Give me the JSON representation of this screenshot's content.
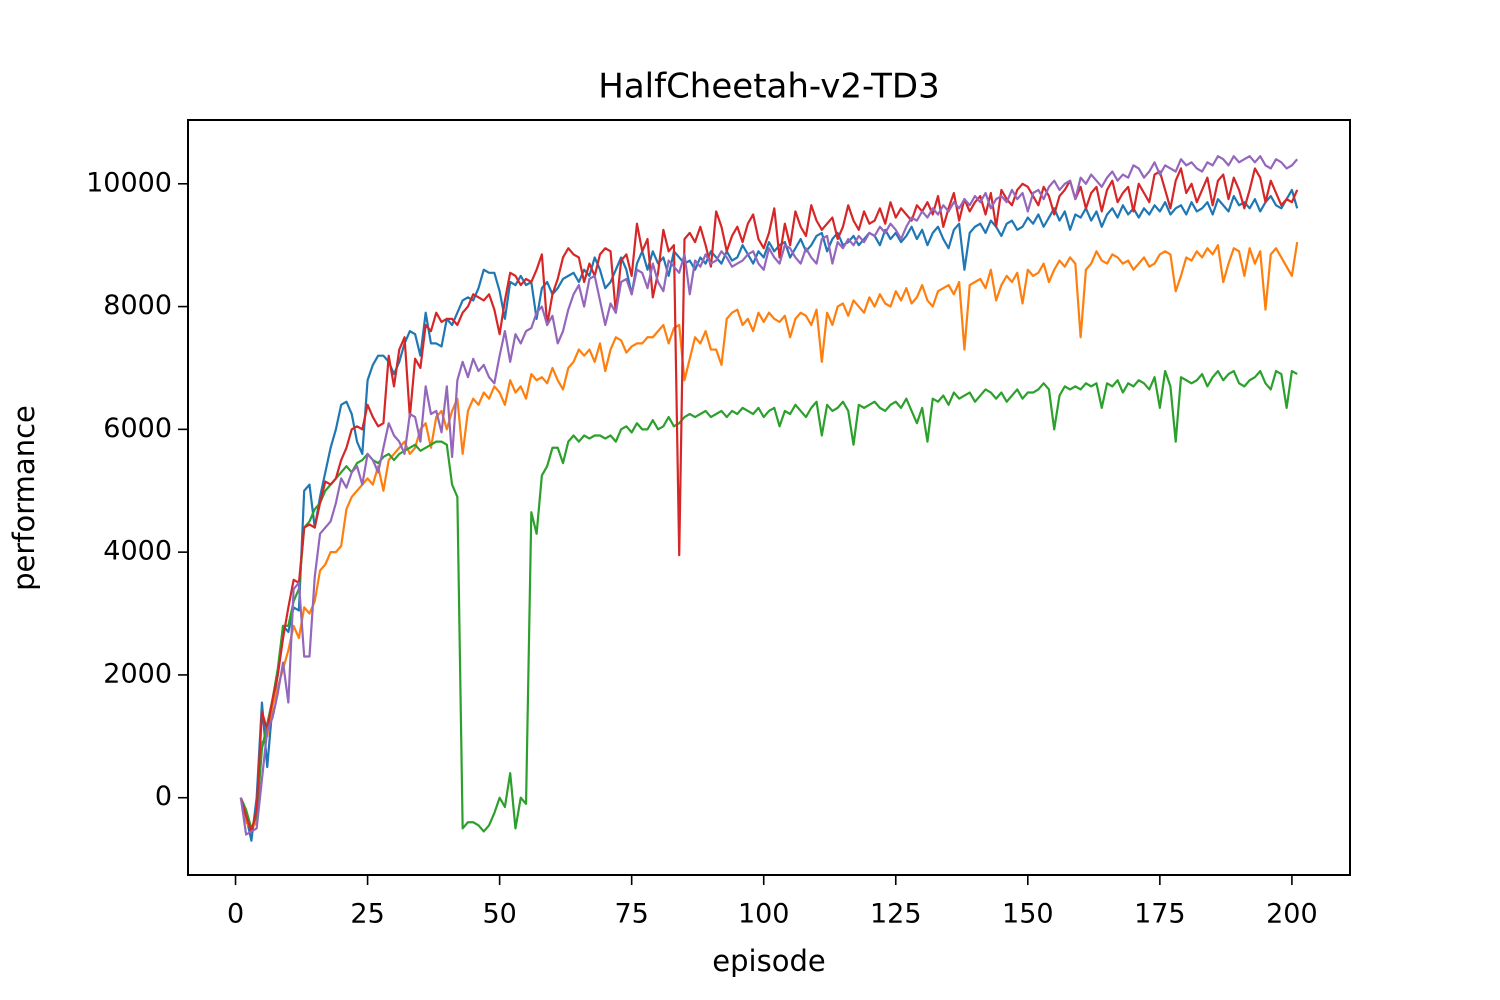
{
  "chart_data": {
    "type": "line",
    "title": "HalfCheetah-v2-TD3",
    "x_label": "episode",
    "y_label": "performance",
    "xlim": [
      -9,
      211
    ],
    "ylim": [
      -1259,
      11039
    ],
    "xticks": [
      0,
      25,
      50,
      75,
      100,
      125,
      150,
      175,
      200
    ],
    "yticks": [
      0,
      2000,
      4000,
      6000,
      8000,
      10000
    ],
    "grid": false,
    "x": [
      1,
      2,
      3,
      4,
      5,
      6,
      7,
      8,
      9,
      10,
      11,
      12,
      13,
      14,
      15,
      16,
      17,
      18,
      19,
      20,
      21,
      22,
      23,
      24,
      25,
      26,
      27,
      28,
      29,
      30,
      31,
      32,
      33,
      34,
      35,
      36,
      37,
      38,
      39,
      40,
      41,
      42,
      43,
      44,
      45,
      46,
      47,
      48,
      49,
      50,
      51,
      52,
      53,
      54,
      55,
      56,
      57,
      58,
      59,
      60,
      61,
      62,
      63,
      64,
      65,
      66,
      67,
      68,
      69,
      70,
      71,
      72,
      73,
      74,
      75,
      76,
      77,
      78,
      79,
      80,
      81,
      82,
      83,
      84,
      85,
      86,
      87,
      88,
      89,
      90,
      91,
      92,
      93,
      94,
      95,
      96,
      97,
      98,
      99,
      100,
      101,
      102,
      103,
      104,
      105,
      106,
      107,
      108,
      109,
      110,
      111,
      112,
      113,
      114,
      115,
      116,
      117,
      118,
      119,
      120,
      121,
      122,
      123,
      124,
      125,
      126,
      127,
      128,
      129,
      130,
      131,
      132,
      133,
      134,
      135,
      136,
      137,
      138,
      139,
      140,
      141,
      142,
      143,
      144,
      145,
      146,
      147,
      148,
      149,
      150,
      151,
      152,
      153,
      154,
      155,
      156,
      157,
      158,
      159,
      160,
      161,
      162,
      163,
      164,
      165,
      166,
      167,
      168,
      169,
      170,
      171,
      172,
      173,
      174,
      175,
      176,
      177,
      178,
      179,
      180,
      181,
      182,
      183,
      184,
      185,
      186,
      187,
      188,
      189,
      190,
      191,
      192,
      193,
      194,
      195,
      196,
      197,
      198,
      199,
      200,
      201
    ],
    "series": [
      {
        "color": "#1f77b4",
        "values": [
          0,
          -300,
          -700,
          0,
          1550,
          500,
          1500,
          2000,
          2800,
          2700,
          3100,
          3050,
          5000,
          5100,
          4400,
          4900,
          5300,
          5700,
          6000,
          6400,
          6450,
          6250,
          5800,
          5600,
          6800,
          7050,
          7200,
          7200,
          7100,
          6900,
          7100,
          7400,
          7600,
          7550,
          7200,
          7900,
          7400,
          7400,
          7350,
          7800,
          7700,
          7900,
          8100,
          8150,
          8100,
          8300,
          8600,
          8550,
          8550,
          8250,
          7800,
          8400,
          8350,
          8500,
          8350,
          8400,
          7800,
          8300,
          8400,
          8200,
          8300,
          8450,
          8500,
          8550,
          8400,
          8600,
          8500,
          8800,
          8600,
          8300,
          8400,
          8600,
          8800,
          8600,
          8200,
          8700,
          8900,
          8600,
          8900,
          8700,
          8800,
          8500,
          8900,
          8800,
          8700,
          8750,
          8600,
          8800,
          8700,
          8900,
          8800,
          8700,
          8900,
          8750,
          8800,
          9000,
          8850,
          8700,
          8900,
          8800,
          9050,
          8900,
          9000,
          9050,
          8800,
          8950,
          9100,
          8900,
          9000,
          9150,
          9200,
          8900,
          9100,
          9200,
          9000,
          9050,
          9150,
          9000,
          9100,
          9200,
          9150,
          9000,
          9250,
          9100,
          9200,
          9050,
          9150,
          9300,
          9100,
          9250,
          9000,
          9200,
          9300,
          9100,
          8950,
          9250,
          9350,
          8600,
          9200,
          9300,
          9350,
          9200,
          9400,
          9300,
          9150,
          9350,
          9400,
          9250,
          9300,
          9450,
          9350,
          9500,
          9300,
          9450,
          9600,
          9400,
          9550,
          9250,
          9500,
          9450,
          9600,
          9400,
          9550,
          9300,
          9500,
          9600,
          9450,
          9650,
          9500,
          9600,
          9450,
          9600,
          9500,
          9650,
          9550,
          9700,
          9500,
          9600,
          9650,
          9500,
          9700,
          9550,
          9600,
          9700,
          9500,
          9750,
          9650,
          9550,
          9800,
          9650,
          9700,
          9600,
          9750,
          9550,
          9700,
          9800,
          9650,
          9600,
          9750,
          9900,
          9600
        ]
      },
      {
        "color": "#ff7f0e",
        "values": [
          0,
          -400,
          -500,
          -400,
          900,
          1000,
          1500,
          1800,
          2100,
          2400,
          2800,
          2600,
          3100,
          3000,
          3200,
          3700,
          3800,
          4000,
          4000,
          4100,
          4700,
          4900,
          5000,
          5100,
          5200,
          5100,
          5400,
          5000,
          5500,
          5600,
          5700,
          5800,
          5600,
          5700,
          6000,
          6100,
          5700,
          6200,
          6300,
          6000,
          6300,
          6500,
          5600,
          6300,
          6500,
          6400,
          6600,
          6500,
          6700,
          6600,
          6400,
          6800,
          6600,
          6700,
          6500,
          6900,
          6800,
          6850,
          6750,
          7000,
          6800,
          6650,
          7000,
          7100,
          7300,
          7200,
          7300,
          7100,
          7400,
          6950,
          7300,
          7500,
          7450,
          7250,
          7350,
          7400,
          7400,
          7500,
          7500,
          7600,
          7700,
          7400,
          7650,
          7700,
          6800,
          7150,
          7500,
          7400,
          7600,
          7300,
          7300,
          7050,
          7800,
          7900,
          7950,
          7700,
          7800,
          7600,
          7900,
          7750,
          7900,
          7800,
          7750,
          7850,
          7500,
          7800,
          7900,
          7850,
          7700,
          7950,
          7100,
          7900,
          7700,
          8000,
          8050,
          7850,
          8100,
          8000,
          7900,
          8150,
          8000,
          8200,
          8050,
          8000,
          8250,
          8100,
          8300,
          8050,
          8150,
          8350,
          8100,
          8000,
          8250,
          8300,
          8350,
          8200,
          8400,
          7300,
          8350,
          8400,
          8450,
          8300,
          8600,
          8100,
          8350,
          8500,
          8400,
          8550,
          8050,
          8600,
          8500,
          8550,
          8700,
          8400,
          8600,
          8750,
          8650,
          8800,
          8700,
          7500,
          8600,
          8700,
          8900,
          8750,
          8700,
          8850,
          8800,
          8700,
          8750,
          8600,
          8700,
          8800,
          8650,
          8700,
          8850,
          8900,
          8850,
          8250,
          8500,
          8800,
          8750,
          8900,
          8800,
          8950,
          8850,
          9000,
          8400,
          8700,
          8950,
          8900,
          8500,
          8950,
          8700,
          8900,
          7950,
          8850,
          8950,
          8800,
          8650,
          8500,
          9050
        ]
      },
      {
        "color": "#2ca02c",
        "values": [
          0,
          -200,
          -500,
          -300,
          800,
          1200,
          1600,
          2100,
          2800,
          2800,
          3200,
          3400,
          4400,
          4500,
          4700,
          4800,
          5000,
          5100,
          5200,
          5300,
          5400,
          5300,
          5450,
          5500,
          5600,
          5500,
          5450,
          5550,
          5600,
          5500,
          5600,
          5650,
          5700,
          5750,
          5650,
          5700,
          5750,
          5800,
          5800,
          5750,
          5100,
          4900,
          -500,
          -400,
          -400,
          -450,
          -550,
          -450,
          -250,
          0,
          -150,
          400,
          -500,
          0,
          -100,
          4650,
          4300,
          5250,
          5400,
          5700,
          5700,
          5450,
          5800,
          5900,
          5800,
          5900,
          5850,
          5900,
          5900,
          5850,
          5900,
          5800,
          6000,
          6050,
          5950,
          6100,
          6000,
          6000,
          6150,
          6000,
          6050,
          6200,
          6050,
          6100,
          6200,
          6250,
          6200,
          6250,
          6300,
          6200,
          6250,
          6300,
          6200,
          6300,
          6250,
          6350,
          6300,
          6250,
          6350,
          6200,
          6300,
          6350,
          6050,
          6300,
          6250,
          6400,
          6300,
          6200,
          6350,
          6450,
          5900,
          6400,
          6300,
          6350,
          6450,
          6300,
          5750,
          6400,
          6350,
          6400,
          6450,
          6350,
          6300,
          6400,
          6450,
          6350,
          6500,
          6300,
          6100,
          6350,
          5800,
          6500,
          6450,
          6550,
          6400,
          6600,
          6500,
          6550,
          6600,
          6450,
          6550,
          6650,
          6600,
          6500,
          6600,
          6450,
          6550,
          6650,
          6500,
          6600,
          6600,
          6650,
          6750,
          6650,
          6000,
          6550,
          6700,
          6650,
          6700,
          6650,
          6750,
          6700,
          6750,
          6350,
          6750,
          6700,
          6800,
          6600,
          6750,
          6700,
          6800,
          6750,
          6650,
          6850,
          6350,
          6950,
          6700,
          5800,
          6850,
          6800,
          6750,
          6800,
          6900,
          6700,
          6850,
          6950,
          6800,
          6900,
          6950,
          6750,
          6700,
          6800,
          6850,
          6950,
          6750,
          6650,
          6950,
          6900,
          6350,
          6950,
          6900
        ]
      },
      {
        "color": "#d62728",
        "values": [
          0,
          -300,
          -550,
          -200,
          1400,
          1100,
          1600,
          2000,
          2600,
          3100,
          3550,
          3500,
          4400,
          4450,
          4400,
          4800,
          5150,
          5100,
          5200,
          5500,
          5700,
          6000,
          6050,
          6000,
          6400,
          6200,
          6050,
          6100,
          7200,
          6700,
          7300,
          7500,
          6200,
          7150,
          7000,
          7700,
          7600,
          7900,
          7750,
          7800,
          7800,
          7700,
          7900,
          8000,
          8200,
          8150,
          8100,
          8200,
          7950,
          7550,
          8100,
          8550,
          8500,
          8350,
          8450,
          8400,
          8600,
          8850,
          7700,
          8200,
          8450,
          8800,
          8950,
          8850,
          8800,
          8400,
          8700,
          8500,
          8850,
          8950,
          8900,
          7900,
          8750,
          8850,
          8500,
          9350,
          8900,
          9100,
          8150,
          8550,
          9250,
          8900,
          9000,
          3950,
          9100,
          9200,
          9050,
          9300,
          9000,
          8650,
          9550,
          9300,
          8900,
          9150,
          9300,
          9050,
          9350,
          9500,
          9100,
          8950,
          9200,
          9600,
          8800,
          9350,
          9000,
          9550,
          9300,
          9150,
          9650,
          9400,
          9250,
          9350,
          9450,
          9100,
          9300,
          9650,
          9400,
          9250,
          9550,
          9350,
          9400,
          9600,
          9350,
          9700,
          9450,
          9600,
          9500,
          9400,
          9650,
          9550,
          9700,
          9500,
          9800,
          9300,
          9600,
          9850,
          9400,
          9750,
          9550,
          9700,
          9800,
          9500,
          9850,
          9300,
          9900,
          9750,
          9650,
          9900,
          10000,
          9950,
          9800,
          9650,
          9950,
          9800,
          9500,
          9800,
          9900,
          10050,
          9750,
          9950,
          9600,
          9850,
          9950,
          9550,
          9900,
          10050,
          9700,
          9850,
          9950,
          9550,
          10000,
          9850,
          9700,
          10150,
          10200,
          9900,
          9600,
          10050,
          10250,
          9850,
          10000,
          9700,
          9900,
          10100,
          9650,
          10050,
          10150,
          9750,
          10100,
          9900,
          9600,
          9900,
          10250,
          10100,
          9700,
          10050,
          9850,
          9650,
          9750,
          9700,
          9900
        ]
      },
      {
        "color": "#9467bd",
        "values": [
          0,
          -600,
          -550,
          -500,
          300,
          1100,
          1300,
          1700,
          2200,
          1550,
          3400,
          3500,
          2300,
          2300,
          3600,
          4300,
          4400,
          4500,
          4800,
          5200,
          5050,
          5300,
          5400,
          5100,
          5600,
          5500,
          5300,
          5700,
          6100,
          5900,
          5800,
          5600,
          6250,
          6200,
          5800,
          6700,
          6250,
          6300,
          5950,
          6700,
          5550,
          6800,
          7100,
          6850,
          7150,
          6950,
          7050,
          6850,
          6750,
          7200,
          7600,
          7100,
          7550,
          7400,
          7600,
          7650,
          7900,
          8000,
          7700,
          7850,
          7400,
          7600,
          7950,
          8200,
          8350,
          8000,
          8450,
          8500,
          8100,
          7700,
          8050,
          7900,
          8400,
          8450,
          8200,
          8600,
          8550,
          8300,
          8700,
          8400,
          8250,
          8750,
          8650,
          8550,
          8850,
          8200,
          8750,
          8650,
          8850,
          8700,
          8750,
          8900,
          8800,
          8650,
          8700,
          8750,
          8850,
          8900,
          8700,
          8600,
          8950,
          8800,
          8700,
          9000,
          8950,
          8800,
          8700,
          8950,
          8800,
          8700,
          9100,
          9150,
          8700,
          9050,
          8950,
          9100,
          9000,
          9150,
          9050,
          9200,
          9150,
          9300,
          9200,
          9350,
          9250,
          9100,
          9300,
          9450,
          9400,
          9550,
          9450,
          9600,
          9500,
          9650,
          9550,
          9700,
          9600,
          9750,
          9650,
          9800,
          9700,
          9850,
          9600,
          9750,
          9800,
          9700,
          9900,
          9750,
          9850,
          9550,
          9850,
          9900,
          9750,
          9950,
          10050,
          9900,
          10000,
          10050,
          9750,
          10100,
          10000,
          10150,
          10050,
          9950,
          10100,
          10200,
          10050,
          10150,
          10100,
          10300,
          10250,
          10100,
          10200,
          10350,
          10150,
          10300,
          10250,
          10200,
          10400,
          10300,
          10350,
          10250,
          10200,
          10350,
          10300,
          10450,
          10400,
          10300,
          10450,
          10350,
          10400,
          10450,
          10350,
          10450,
          10300,
          10250,
          10400,
          10350,
          10250,
          10300,
          10400
        ]
      }
    ]
  }
}
